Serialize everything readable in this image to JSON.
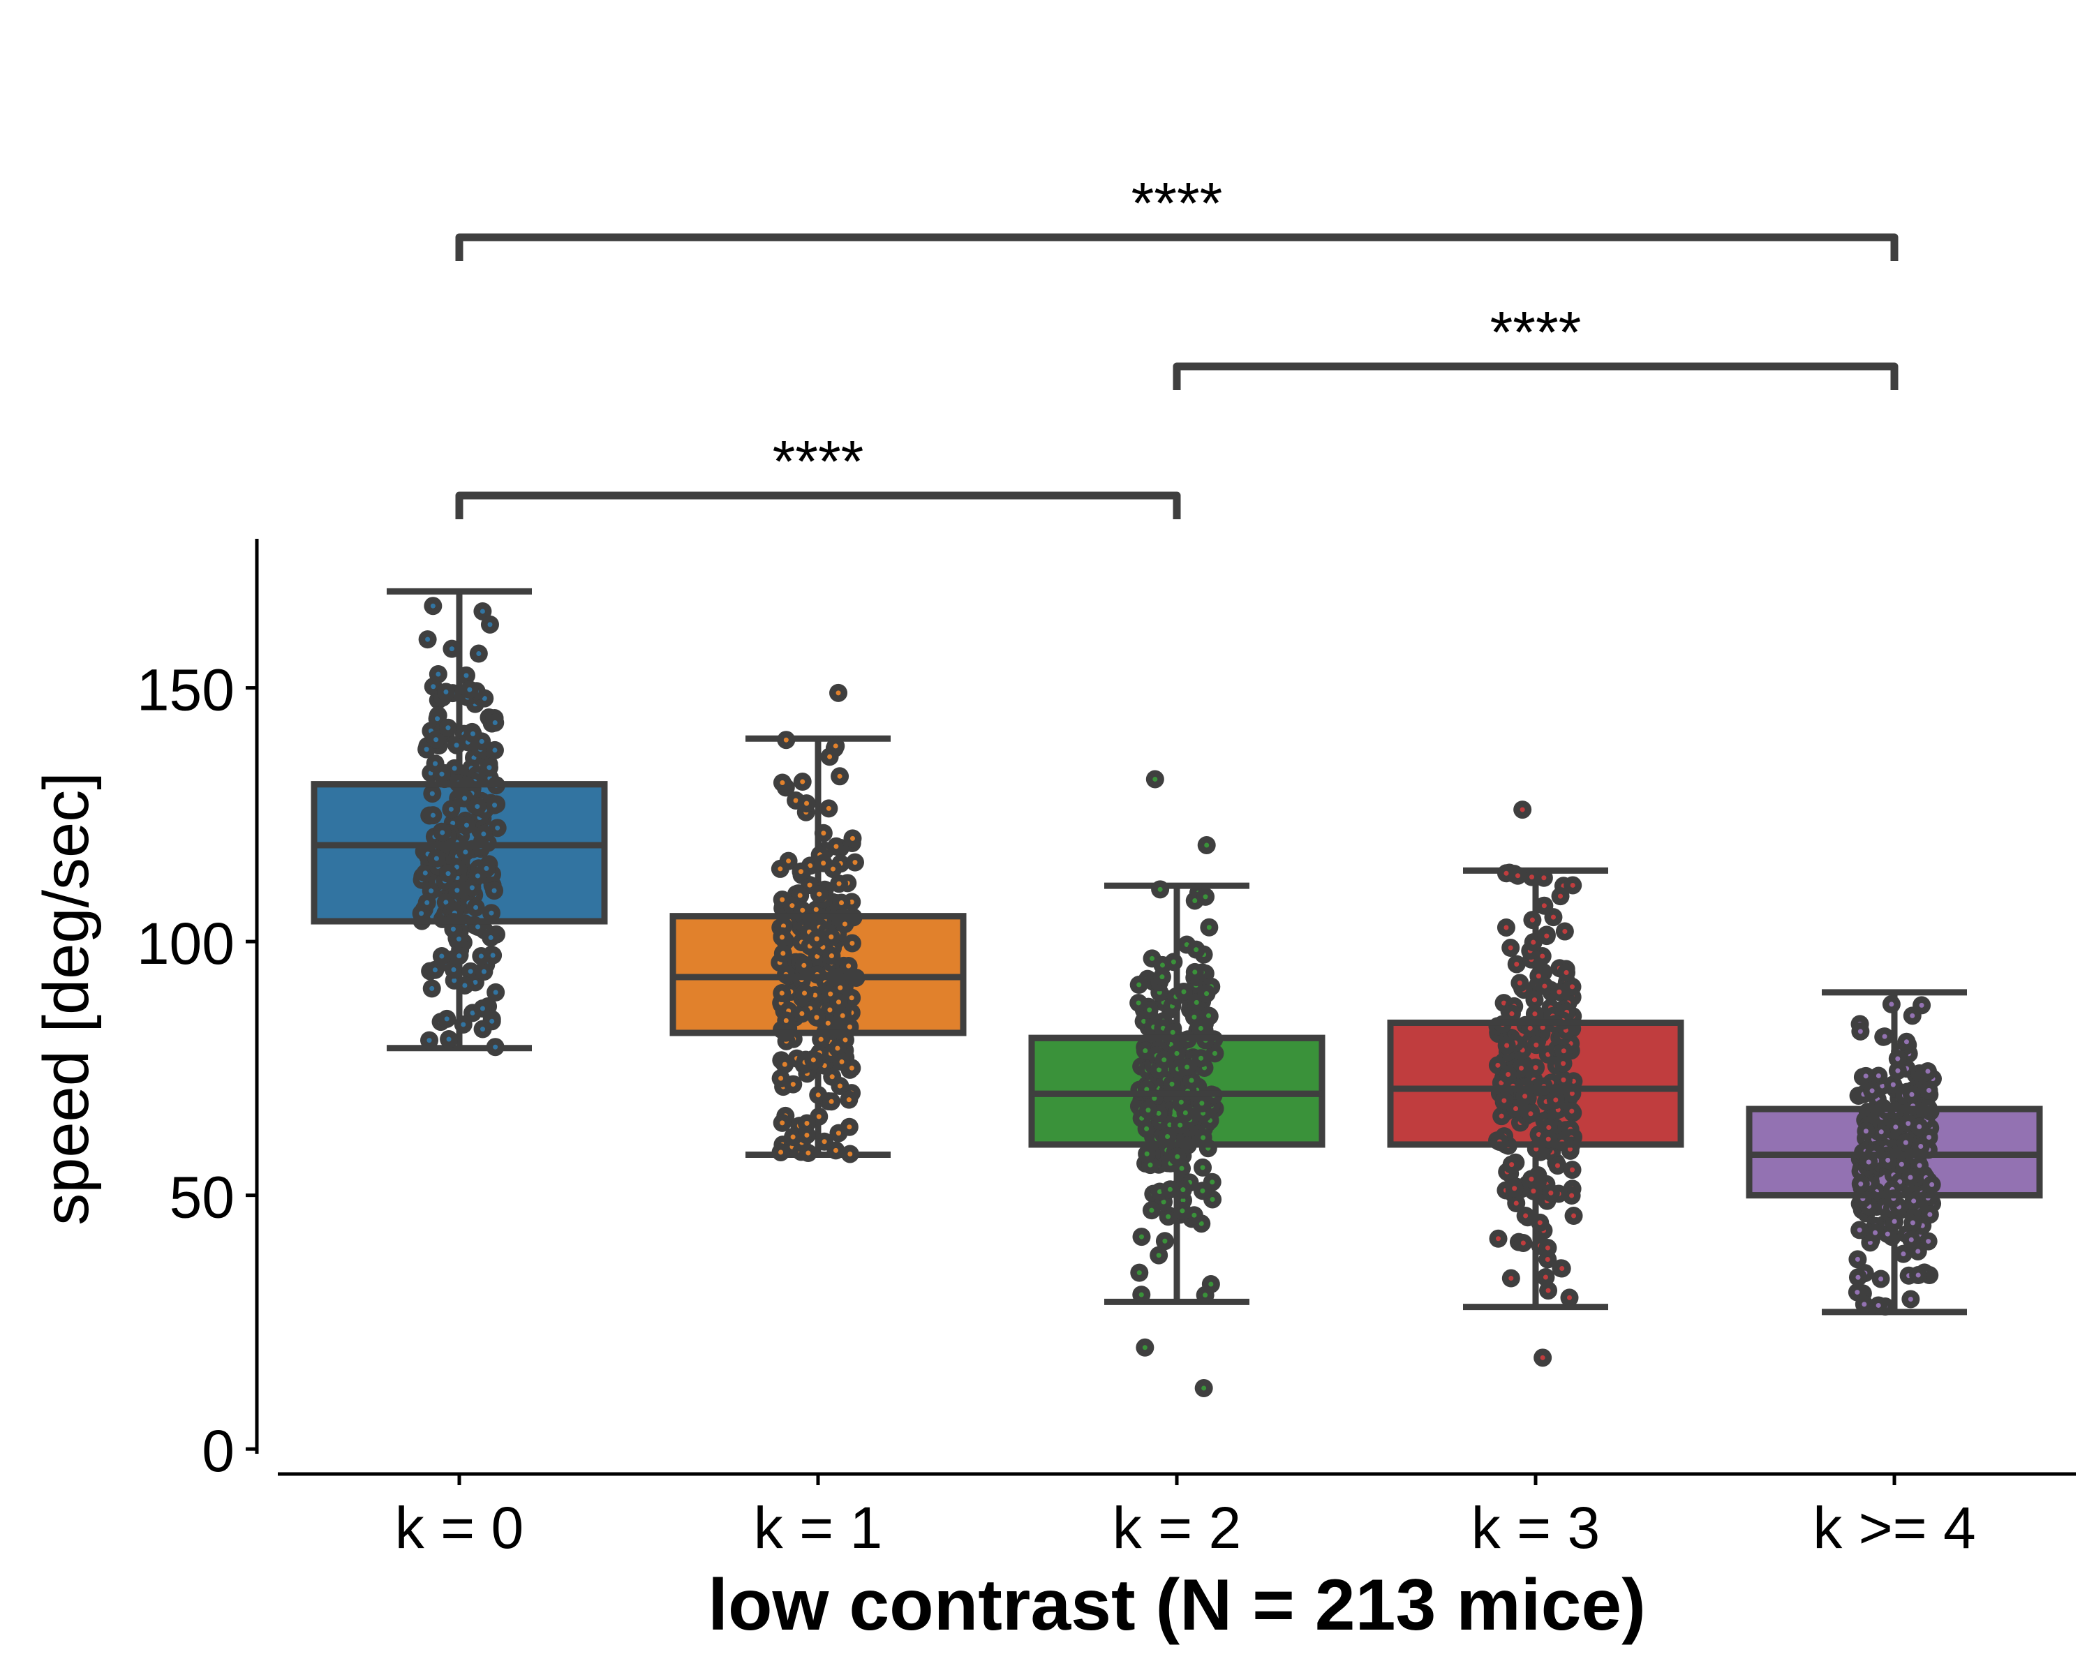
{
  "chart_data": {
    "type": "box",
    "title": "",
    "xlabel": "low contrast (N = 213 mice)",
    "ylabel": "speed [deg/sec]",
    "ylim": [
      -3,
      178
    ],
    "yticks": [
      0,
      50,
      100,
      150
    ],
    "categories": [
      "k = 0",
      "k = 1",
      "k = 2",
      "k = 3",
      "k >= 4"
    ],
    "colors": [
      "#3274a1",
      "#e1812c",
      "#3a923a",
      "#c03d3e",
      "#9372b2"
    ],
    "boxes": [
      {
        "q1": 104,
        "median": 119,
        "q3": 131,
        "whisker_low": 79,
        "whisker_high": 169
      },
      {
        "q1": 82,
        "median": 93,
        "q3": 105,
        "whisker_low": 58,
        "whisker_high": 140
      },
      {
        "q1": 60,
        "median": 70,
        "q3": 81,
        "whisker_low": 29,
        "whisker_high": 111
      },
      {
        "q1": 60,
        "median": 71,
        "q3": 84,
        "whisker_low": 28,
        "whisker_high": 114
      },
      {
        "q1": 50,
        "median": 58,
        "q3": 67,
        "whisker_low": 27,
        "whisker_high": 90
      }
    ],
    "outliers": [
      [],
      [
        149
      ],
      [
        132,
        119,
        20,
        12
      ],
      [
        126,
        18
      ],
      []
    ],
    "annotations": [
      {
        "from": 0,
        "to": 2,
        "text": "****",
        "level": 1
      },
      {
        "from": 2,
        "to": 4,
        "text": "****",
        "level": 2
      },
      {
        "from": 0,
        "to": 4,
        "text": "****",
        "level": 3
      }
    ],
    "grid": false
  }
}
